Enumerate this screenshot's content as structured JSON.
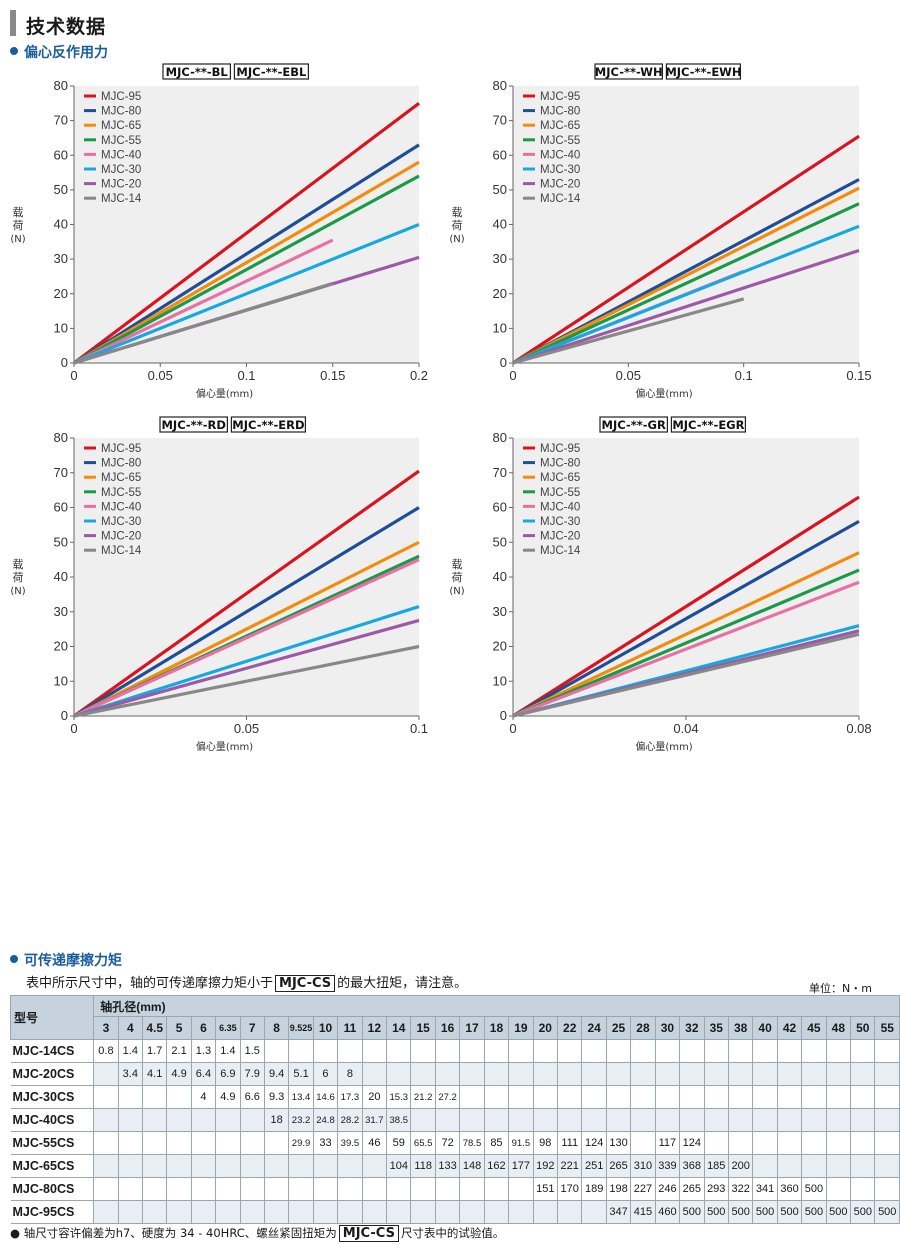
{
  "page_title": "技术数据",
  "section1": "偏心反作用力",
  "charts_common": {
    "ylabel": [
      "载",
      "荷",
      "(N)"
    ],
    "xlabel": "偏心量(mm)",
    "yticks": [
      "0",
      "10",
      "20",
      "30",
      "40",
      "50",
      "60",
      "70",
      "80"
    ],
    "legend": [
      "MJC-95",
      "MJC-80",
      "MJC-65",
      "MJC-55",
      "MJC-40",
      "MJC-30",
      "MJC-20",
      "MJC-14"
    ],
    "colors": [
      "#d9141f",
      "#1d4e97",
      "#f28c0f",
      "#1a9a48",
      "#ea6fa4",
      "#18a8e0",
      "#9b59a6",
      "#888888"
    ]
  },
  "chart_data": [
    {
      "type": "line",
      "models": [
        "MJC-**-BL",
        "MJC-**-EBL"
      ],
      "xlim": [
        0,
        0.2
      ],
      "ylim": [
        0,
        80
      ],
      "xticks": [
        "0",
        "0.05",
        "0.1",
        "0.15",
        "0.2"
      ],
      "series": [
        {
          "name": "MJC-95",
          "x": [
            0,
            0.2
          ],
          "y": [
            0,
            75
          ]
        },
        {
          "name": "MJC-80",
          "x": [
            0,
            0.2
          ],
          "y": [
            0,
            63
          ]
        },
        {
          "name": "MJC-65",
          "x": [
            0,
            0.2
          ],
          "y": [
            0,
            58
          ]
        },
        {
          "name": "MJC-55",
          "x": [
            0,
            0.2
          ],
          "y": [
            0,
            54
          ]
        },
        {
          "name": "MJC-40",
          "x": [
            0,
            0.15
          ],
          "y": [
            0,
            35.5
          ]
        },
        {
          "name": "MJC-30",
          "x": [
            0,
            0.2
          ],
          "y": [
            0,
            40
          ]
        },
        {
          "name": "MJC-20",
          "x": [
            0,
            0.2
          ],
          "y": [
            0,
            30.5
          ]
        },
        {
          "name": "MJC-14",
          "x": [
            0,
            0.15
          ],
          "y": [
            0,
            23
          ]
        }
      ]
    },
    {
      "type": "line",
      "models": [
        "MJC-**-WH",
        "MJC-**-EWH"
      ],
      "xlim": [
        0,
        0.15
      ],
      "ylim": [
        0,
        80
      ],
      "xticks": [
        "0",
        "0.05",
        "0.1",
        "0.15"
      ],
      "series": [
        {
          "name": "MJC-95",
          "x": [
            0,
            0.15
          ],
          "y": [
            0,
            65.5
          ]
        },
        {
          "name": "MJC-80",
          "x": [
            0,
            0.15
          ],
          "y": [
            0,
            53
          ]
        },
        {
          "name": "MJC-65",
          "x": [
            0,
            0.15
          ],
          "y": [
            0,
            50.5
          ]
        },
        {
          "name": "MJC-55",
          "x": [
            0,
            0.15
          ],
          "y": [
            0,
            46
          ]
        },
        {
          "name": "MJC-40",
          "x": [
            0,
            0.1
          ],
          "y": [
            0,
            26.5
          ]
        },
        {
          "name": "MJC-30",
          "x": [
            0,
            0.15
          ],
          "y": [
            0,
            39.5
          ]
        },
        {
          "name": "MJC-20",
          "x": [
            0,
            0.15
          ],
          "y": [
            0,
            32.5
          ]
        },
        {
          "name": "MJC-14",
          "x": [
            0,
            0.1
          ],
          "y": [
            0,
            18.5
          ]
        }
      ]
    },
    {
      "type": "line",
      "models": [
        "MJC-**-RD",
        "MJC-**-ERD"
      ],
      "xlim": [
        0,
        0.1
      ],
      "ylim": [
        0,
        80
      ],
      "xticks": [
        "0",
        "0.05",
        "0.1"
      ],
      "series": [
        {
          "name": "MJC-95",
          "x": [
            0,
            0.1
          ],
          "y": [
            0,
            70.5
          ]
        },
        {
          "name": "MJC-80",
          "x": [
            0,
            0.1
          ],
          "y": [
            0,
            60
          ]
        },
        {
          "name": "MJC-65",
          "x": [
            0,
            0.1
          ],
          "y": [
            0,
            50
          ]
        },
        {
          "name": "MJC-55",
          "x": [
            0,
            0.1
          ],
          "y": [
            0,
            46
          ]
        },
        {
          "name": "MJC-40",
          "x": [
            0,
            0.1
          ],
          "y": [
            0,
            45
          ]
        },
        {
          "name": "MJC-30",
          "x": [
            0,
            0.1
          ],
          "y": [
            0,
            31.5
          ]
        },
        {
          "name": "MJC-20",
          "x": [
            0,
            0.1
          ],
          "y": [
            0,
            27.5
          ]
        },
        {
          "name": "MJC-14",
          "x": [
            0,
            0.1
          ],
          "y": [
            0,
            20
          ]
        }
      ]
    },
    {
      "type": "line",
      "models": [
        "MJC-**-GR",
        "MJC-**-EGR"
      ],
      "xlim": [
        0,
        0.08
      ],
      "ylim": [
        0,
        80
      ],
      "xticks": [
        "0",
        "0.04",
        "0.08"
      ],
      "series": [
        {
          "name": "MJC-95",
          "x": [
            0,
            0.08
          ],
          "y": [
            0,
            63
          ]
        },
        {
          "name": "MJC-80",
          "x": [
            0,
            0.08
          ],
          "y": [
            0,
            56
          ]
        },
        {
          "name": "MJC-65",
          "x": [
            0,
            0.08
          ],
          "y": [
            0,
            47
          ]
        },
        {
          "name": "MJC-55",
          "x": [
            0,
            0.08
          ],
          "y": [
            0,
            42
          ]
        },
        {
          "name": "MJC-40",
          "x": [
            0,
            0.08
          ],
          "y": [
            0,
            38.5
          ]
        },
        {
          "name": "MJC-30",
          "x": [
            0,
            0.08
          ],
          "y": [
            0,
            26
          ]
        },
        {
          "name": "MJC-20",
          "x": [
            0,
            0.08
          ],
          "y": [
            0,
            24.5
          ]
        },
        {
          "name": "MJC-14",
          "x": [
            0,
            0.08
          ],
          "y": [
            0,
            23.5
          ]
        }
      ]
    }
  ],
  "section2": "可传递摩擦力矩",
  "note_pre": "表中所示尺寸中，轴的可传递摩擦力矩小于",
  "note_model": "MJC-CS",
  "note_post": "的最大扭矩，请注意。",
  "unit": "单位：N・m",
  "table": {
    "head_model": "型号",
    "head_bore": "轴孔径(mm)",
    "diameters": [
      "3",
      "4",
      "4.5",
      "5",
      "6",
      "6.35",
      "7",
      "8",
      "9.525",
      "10",
      "11",
      "12",
      "14",
      "15",
      "16",
      "17",
      "18",
      "19",
      "20",
      "22",
      "24",
      "25",
      "28",
      "30",
      "32",
      "35",
      "38",
      "40",
      "42",
      "45",
      "48",
      "50",
      "55"
    ],
    "rows": [
      {
        "model": "MJC-14CS",
        "values": [
          "0.8",
          "1.4",
          "1.7",
          "2.1",
          "1.3",
          "1.4",
          "1.5",
          "",
          "",
          "",
          "",
          "",
          "",
          "",
          "",
          "",
          "",
          "",
          "",
          "",
          "",
          "",
          "",
          "",
          "",
          "",
          "",
          "",
          "",
          "",
          "",
          "",
          ""
        ]
      },
      {
        "model": "MJC-20CS",
        "values": [
          "",
          "3.4",
          "4.1",
          "4.9",
          "6.4",
          "6.9",
          "7.9",
          "9.4",
          "5.1",
          "6",
          "8",
          "",
          "",
          "",
          "",
          "",
          "",
          "",
          "",
          "",
          "",
          "",
          "",
          "",
          "",
          "",
          "",
          "",
          "",
          "",
          "",
          "",
          ""
        ]
      },
      {
        "model": "MJC-30CS",
        "values": [
          "",
          "",
          "",
          "",
          "4",
          "4.9",
          "6.6",
          "9.3",
          "13.4",
          "14.6",
          "17.3",
          "20",
          "15.3",
          "21.2",
          "27.2",
          "",
          "",
          "",
          "",
          "",
          "",
          "",
          "",
          "",
          "",
          "",
          "",
          "",
          "",
          "",
          "",
          "",
          ""
        ]
      },
      {
        "model": "MJC-40CS",
        "values": [
          "",
          "",
          "",
          "",
          "",
          "",
          "",
          "18",
          "23.2",
          "24.8",
          "28.2",
          "31.7",
          "38.5",
          "",
          "",
          "",
          "",
          "",
          "",
          "",
          "",
          "",
          "",
          "",
          "",
          "",
          "",
          "",
          "",
          "",
          "",
          "",
          ""
        ]
      },
      {
        "model": "MJC-55CS",
        "values": [
          "",
          "",
          "",
          "",
          "",
          "",
          "",
          "",
          "29.9",
          "33",
          "39.5",
          "46",
          "59",
          "65.5",
          "72",
          "78.5",
          "85",
          "91.5",
          "98",
          "111",
          "124",
          "130",
          "",
          "117",
          "124",
          "",
          "",
          "",
          "",
          "",
          "",
          "",
          ""
        ]
      },
      {
        "model": "MJC-65CS",
        "values": [
          "",
          "",
          "",
          "",
          "",
          "",
          "",
          "",
          "",
          "",
          "",
          "",
          "104",
          "118",
          "133",
          "148",
          "162",
          "177",
          "192",
          "221",
          "251",
          "265",
          "310",
          "339",
          "368",
          "185",
          "200",
          "",
          "",
          "",
          "",
          "",
          ""
        ]
      },
      {
        "model": "MJC-80CS",
        "values": [
          "",
          "",
          "",
          "",
          "",
          "",
          "",
          "",
          "",
          "",
          "",
          "",
          "",
          "",
          "",
          "",
          "",
          "",
          "151",
          "170",
          "189",
          "198",
          "227",
          "246",
          "265",
          "293",
          "322",
          "341",
          "360",
          "500",
          "",
          "",
          ""
        ]
      },
      {
        "model": "MJC-95CS",
        "values": [
          "",
          "",
          "",
          "",
          "",
          "",
          "",
          "",
          "",
          "",
          "",
          "",
          "",
          "",
          "",
          "",
          "",
          "",
          "",
          "",
          "",
          "347",
          "415",
          "460",
          "500",
          "500",
          "500",
          "500",
          "500",
          "500",
          "500",
          "500",
          "500"
        ]
      }
    ]
  },
  "foot_pre": "● 轴尺寸容许偏差为h7、硬度为 34 - 40HRC、螺丝紧固扭矩为",
  "foot_model": "MJC-CS",
  "foot_post": "尺寸表中的试验值。"
}
